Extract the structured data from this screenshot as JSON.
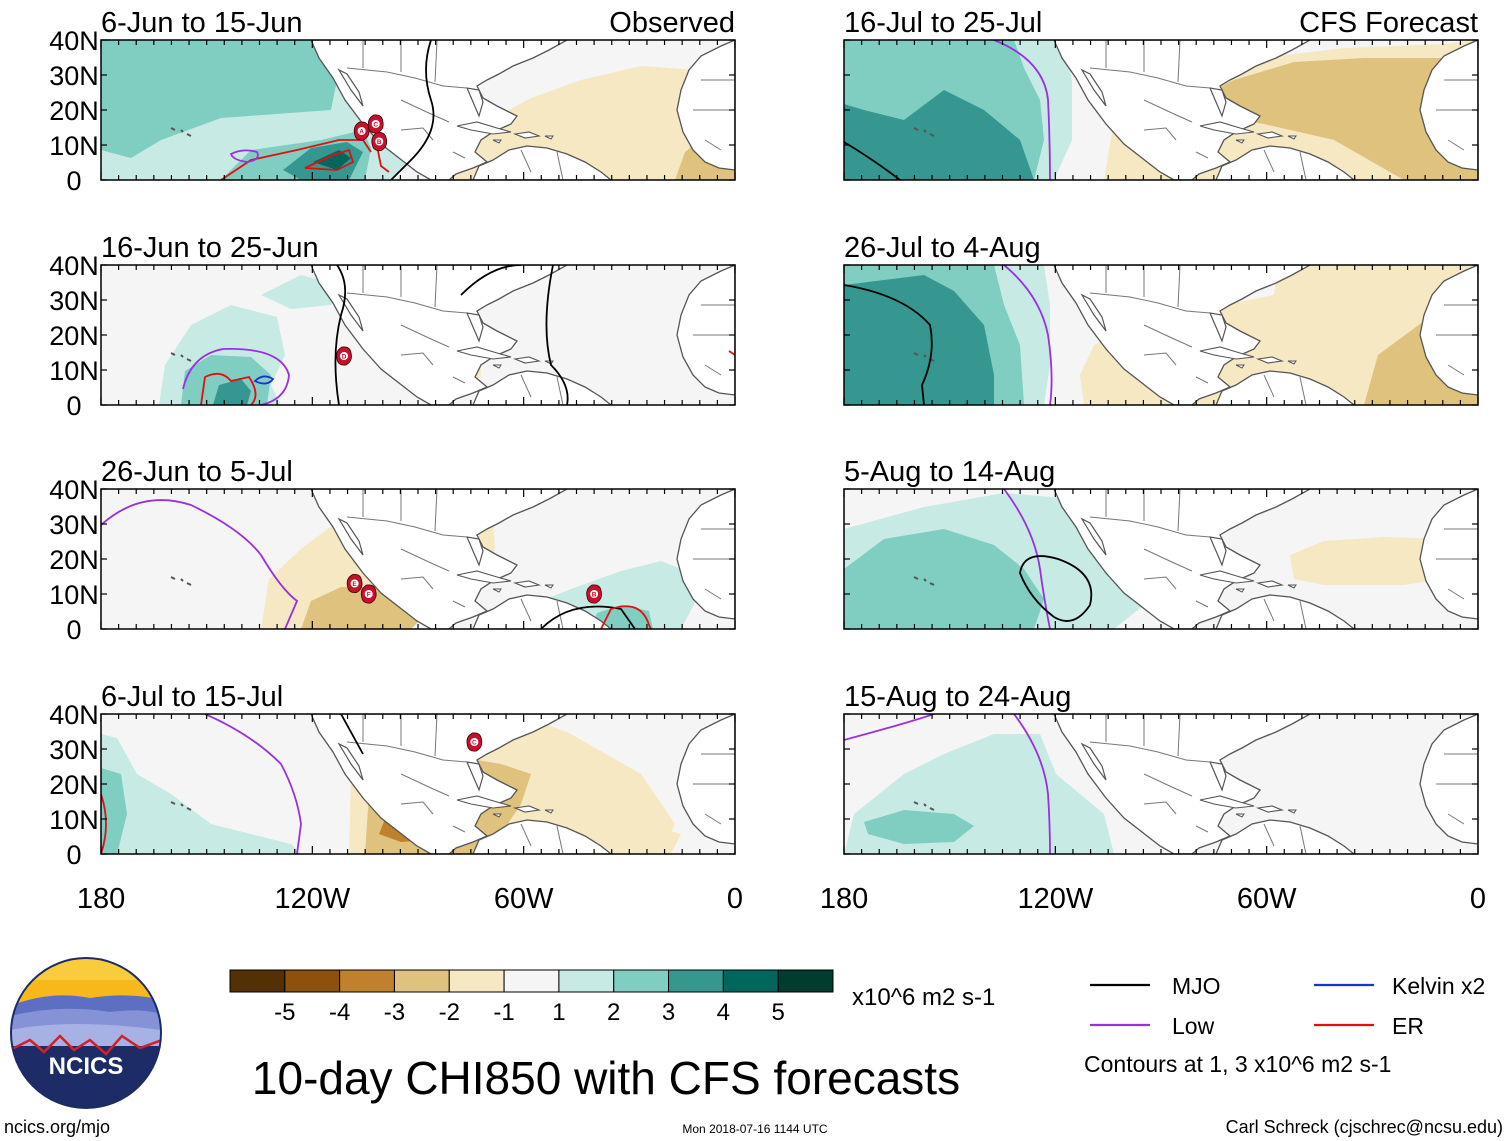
{
  "panels": [
    {
      "id": "obs1",
      "title": "6-Jun to 15-Jun",
      "label": "Observed",
      "storms": [
        {
          "letter": "A",
          "lon": -106,
          "lat": 14
        },
        {
          "letter": "B",
          "lon": -101,
          "lat": 11
        },
        {
          "letter": "C",
          "lon": -102,
          "lat": 16
        }
      ]
    },
    {
      "id": "obs2",
      "title": "16-Jun to 25-Jun",
      "label": "",
      "storms": [
        {
          "letter": "D",
          "lon": -111,
          "lat": 14
        }
      ]
    },
    {
      "id": "obs3",
      "title": "26-Jun to 5-Jul",
      "label": "",
      "storms": [
        {
          "letter": "E",
          "lon": -108,
          "lat": 13
        },
        {
          "letter": "F",
          "lon": -104,
          "lat": 10
        },
        {
          "letter": "B",
          "lon": -40,
          "lat": 10
        }
      ]
    },
    {
      "id": "obs4",
      "title": "6-Jul to 15-Jul",
      "label": "",
      "storms": [
        {
          "letter": "C",
          "lon": -74,
          "lat": 32
        }
      ]
    },
    {
      "id": "fc1",
      "title": "16-Jul to 25-Jul",
      "label": "CFS Forecast",
      "storms": []
    },
    {
      "id": "fc2",
      "title": "26-Jul to 4-Aug",
      "label": "",
      "storms": []
    },
    {
      "id": "fc3",
      "title": "5-Aug to 14-Aug",
      "label": "",
      "storms": []
    },
    {
      "id": "fc4",
      "title": "15-Aug to 24-Aug",
      "label": "",
      "storms": []
    }
  ],
  "axes": {
    "lat_ticks": [
      "40N",
      "30N",
      "20N",
      "10N",
      "0"
    ],
    "lon_ticks": [
      "180",
      "120W",
      "60W",
      "0"
    ]
  },
  "colorbar": {
    "labels": [
      "-5",
      "-4",
      "-3",
      "-2",
      "-1",
      "1",
      "2",
      "3",
      "4",
      "5"
    ],
    "colors": [
      "#543005",
      "#8c510a",
      "#bf812d",
      "#dfc27d",
      "#f6e8c3",
      "#f5f5f5",
      "#c7eae5",
      "#80cdc1",
      "#35978f",
      "#01665e",
      "#003c30"
    ],
    "units": "x10^6 m2 s-1"
  },
  "legend": {
    "items": [
      {
        "label": "MJO",
        "color": "#000000"
      },
      {
        "label": "Kelvin x2",
        "color": "#1a2fd6"
      },
      {
        "label": "Low",
        "color": "#9a30e0"
      },
      {
        "label": "ER",
        "color": "#e01010"
      }
    ],
    "note": "Contours at 1, 3 x10^6 m2 s-1"
  },
  "main_title": "10-day CHI850 with CFS forecasts",
  "logo_text": "NCICS",
  "footer": {
    "left": "ncics.org/mjo",
    "center": "Mon 2018-07-16 1144 UTC",
    "right": "Carl Schreck (cjschrec@ncsu.edu)"
  }
}
